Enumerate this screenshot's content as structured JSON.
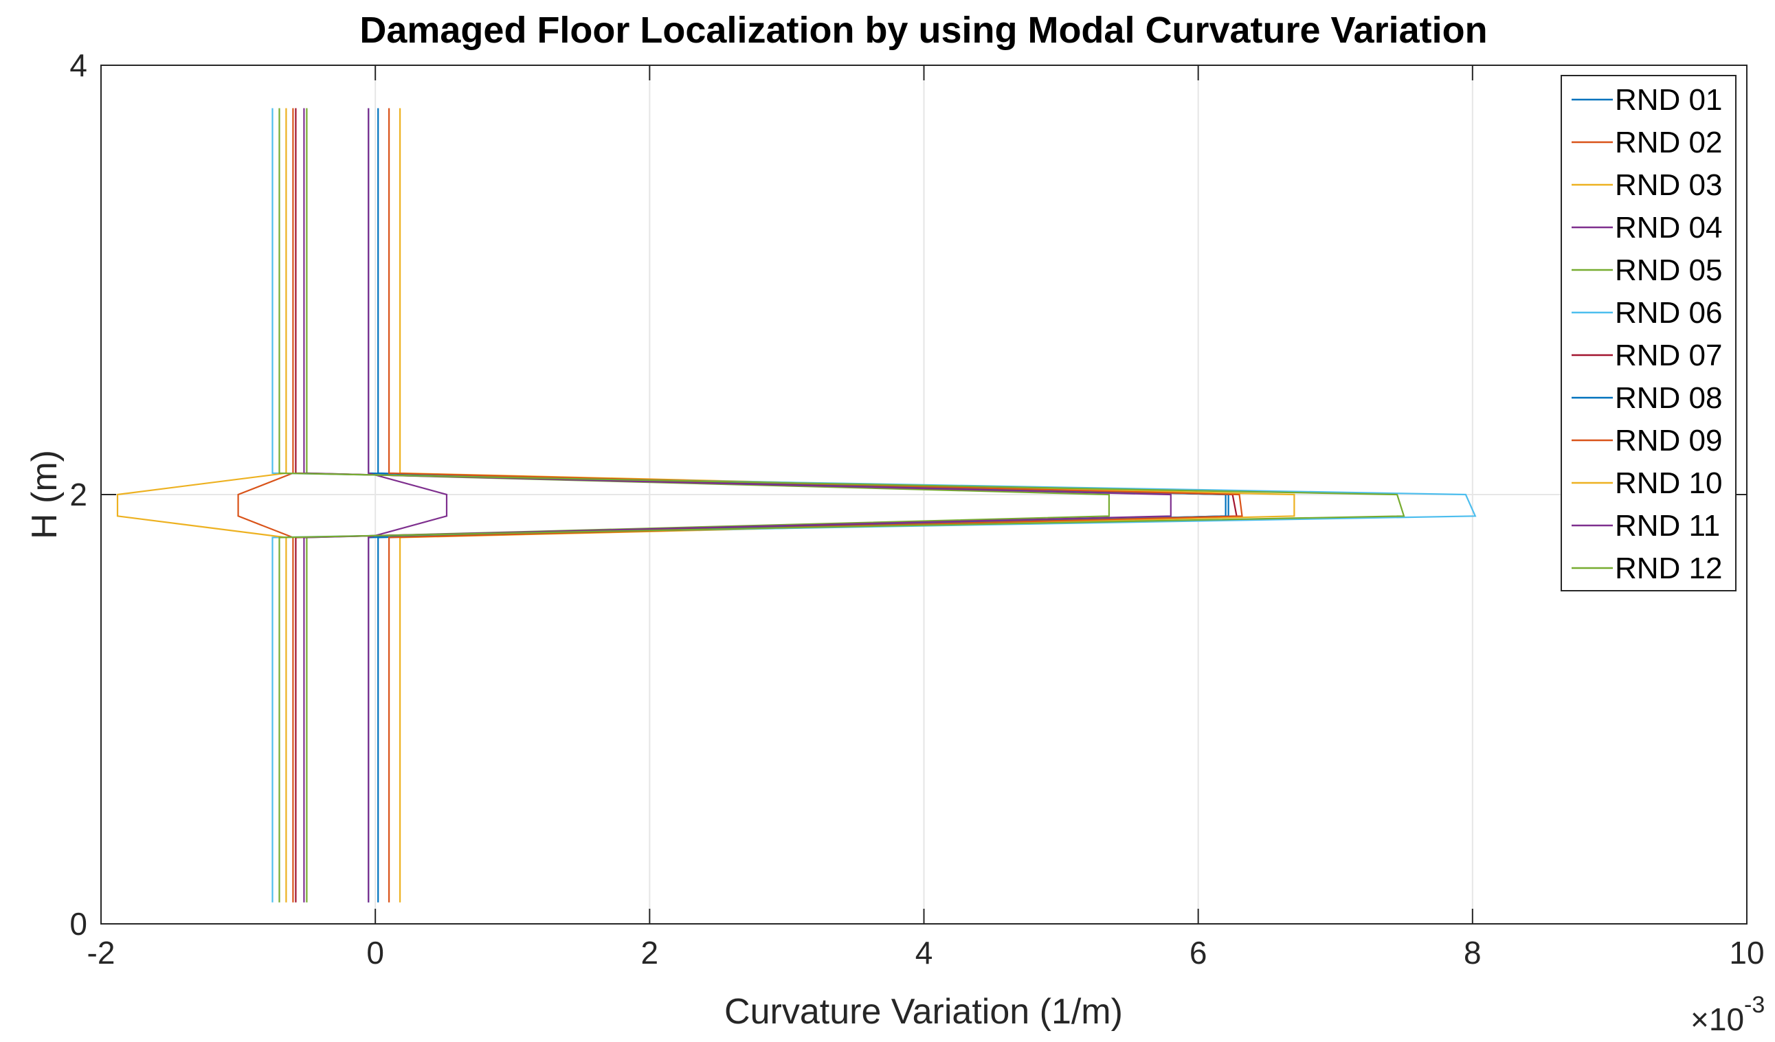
{
  "chart_data": {
    "type": "line",
    "title": "Damaged Floor Localization by using Modal Curvature Variation",
    "xlabel": "Curvature Variation (1/m)",
    "ylabel": "H (m)",
    "x_exponent_label": "×10",
    "x_exponent_power": "-3",
    "xlim": [
      -2,
      10
    ],
    "ylim": [
      0,
      4
    ],
    "xticks": [
      -2,
      0,
      2,
      4,
      6,
      8,
      10
    ],
    "yticks": [
      0,
      2,
      4
    ],
    "x_tick_labels": [
      "-2",
      "0",
      "2",
      "4",
      "6",
      "8",
      "10"
    ],
    "y_tick_labels": [
      "0",
      "2",
      "4"
    ],
    "grid": true,
    "legend_position": "top-right",
    "y": [
      0.1,
      1.8,
      1.9,
      2.0,
      2.1,
      3.8
    ],
    "series": [
      {
        "name": "RND 01",
        "color": "#0072BD",
        "x": [
          -0.05,
          -0.05,
          6.2,
          6.2,
          -0.05,
          -0.05
        ]
      },
      {
        "name": "RND 02",
        "color": "#D95319",
        "x": [
          -0.6,
          -0.6,
          -1.0,
          -1.0,
          -0.6,
          -0.6
        ]
      },
      {
        "name": "RND 03",
        "color": "#EDB120",
        "x": [
          0.18,
          0.18,
          6.7,
          6.7,
          0.18,
          0.18
        ]
      },
      {
        "name": "RND 04",
        "color": "#7E2F8E",
        "x": [
          -0.05,
          -0.05,
          0.52,
          0.52,
          -0.05,
          -0.05
        ]
      },
      {
        "name": "RND 05",
        "color": "#77AC30",
        "x": [
          -0.5,
          -0.5,
          5.35,
          5.35,
          -0.5,
          -0.5
        ]
      },
      {
        "name": "RND 06",
        "color": "#4DBEEE",
        "x": [
          -0.75,
          -0.75,
          8.02,
          7.95,
          -0.75,
          -0.75
        ]
      },
      {
        "name": "RND 07",
        "color": "#A2142F",
        "x": [
          -0.58,
          -0.58,
          6.28,
          6.25,
          -0.58,
          -0.58
        ]
      },
      {
        "name": "RND 08",
        "color": "#0072BD",
        "x": [
          0.02,
          0.02,
          6.22,
          6.22,
          0.02,
          0.02
        ]
      },
      {
        "name": "RND 09",
        "color": "#D95319",
        "x": [
          0.1,
          0.1,
          6.32,
          6.3,
          0.1,
          0.1
        ]
      },
      {
        "name": "RND 10",
        "color": "#EDB120",
        "x": [
          -0.65,
          -0.65,
          -1.88,
          -1.88,
          -0.65,
          -0.65
        ]
      },
      {
        "name": "RND 11",
        "color": "#7E2F8E",
        "x": [
          -0.52,
          -0.52,
          5.8,
          5.8,
          -0.52,
          -0.52
        ]
      },
      {
        "name": "RND 12",
        "color": "#77AC30",
        "x": [
          -0.7,
          -0.7,
          7.5,
          7.45,
          -0.7,
          -0.7
        ]
      }
    ]
  }
}
